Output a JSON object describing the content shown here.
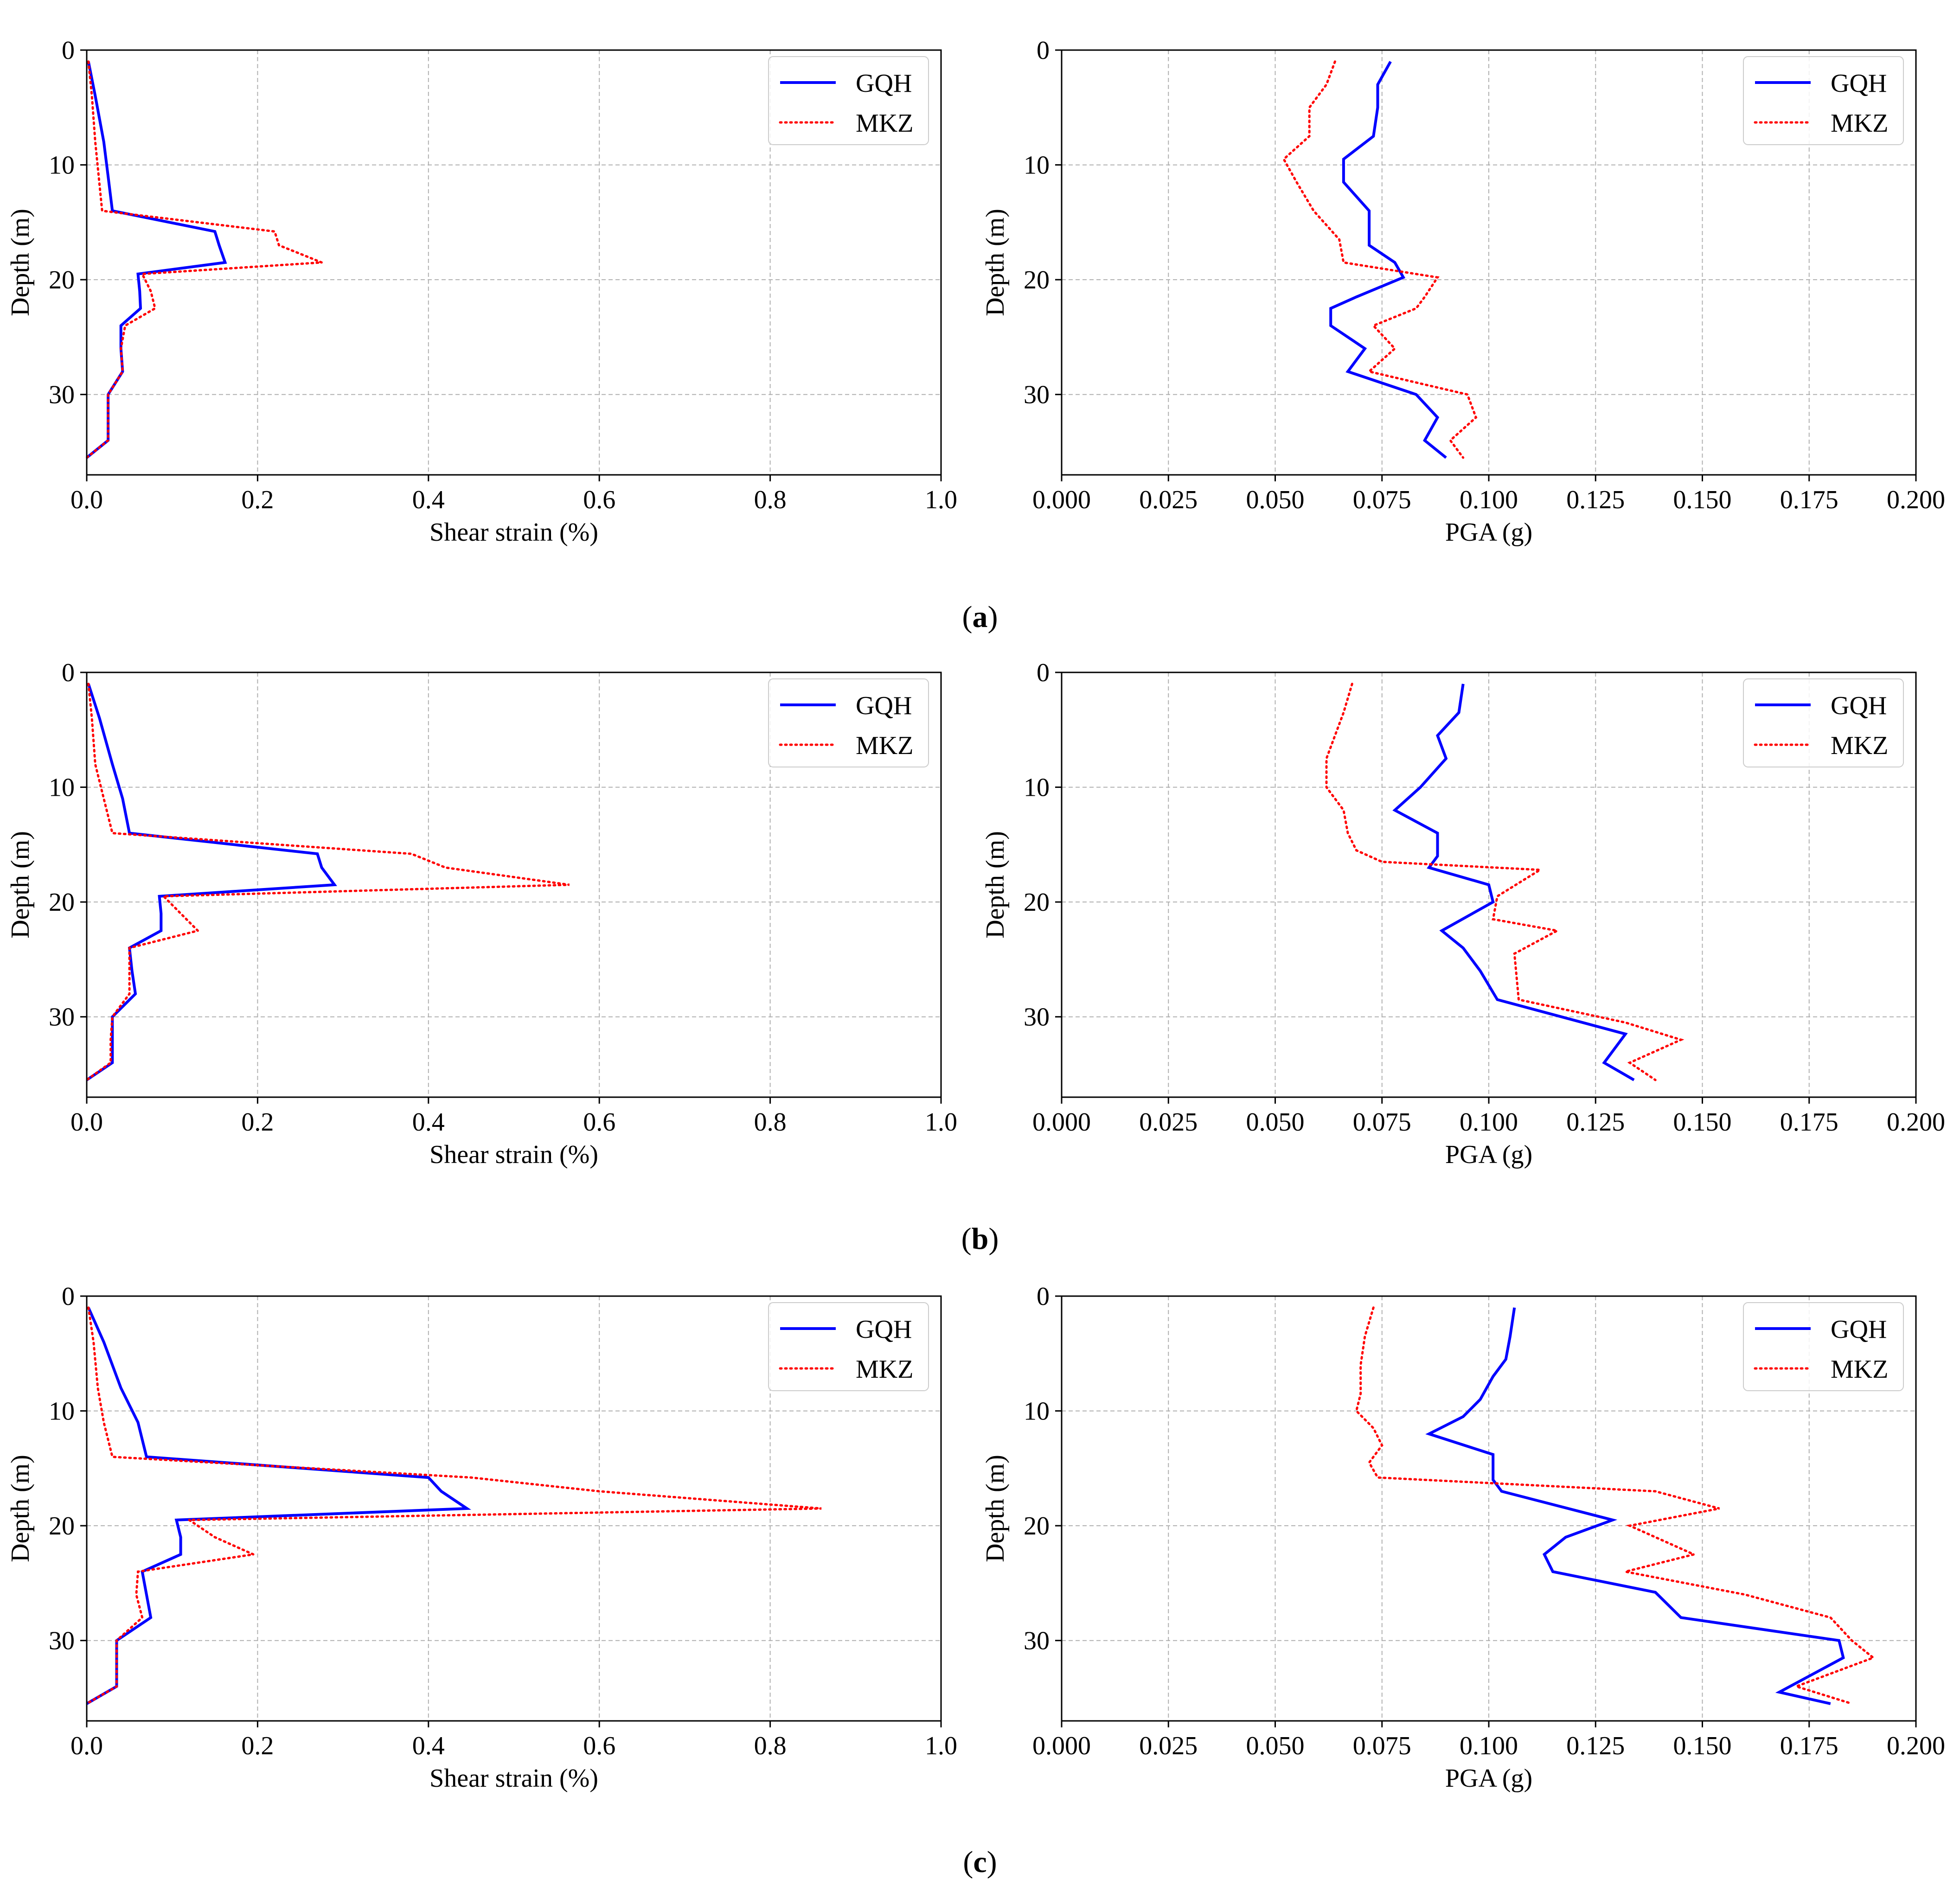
{
  "colors": {
    "gqh": "#0000ff",
    "mkz": "#ff0000",
    "axis": "#000000",
    "grid": "#b0b0b0"
  },
  "panel_labels": [
    "a",
    "b",
    "c"
  ],
  "chart_data": [
    {
      "type": "line",
      "panel": "a",
      "side": "left",
      "title": "",
      "xlabel": "Shear strain (%)",
      "ylabel": "Depth (m)",
      "xlim": [
        0,
        1.0
      ],
      "ylim": [
        37,
        0
      ],
      "grid": true,
      "legend": "top-right",
      "xticks": [
        "0.0",
        "0.2",
        "0.4",
        "0.6",
        "0.8",
        "1.0"
      ],
      "yticks": [
        "0",
        "10",
        "20",
        "30"
      ],
      "series": [
        {
          "name": "GQH",
          "style": "solid",
          "x": [
            0.002,
            0.01,
            0.02,
            0.025,
            0.03,
            0.15,
            0.155,
            0.162,
            0.06,
            0.062,
            0.063,
            0.04,
            0.04,
            0.042,
            0.025,
            0.025,
            0.025,
            0.0
          ],
          "y": [
            1,
            4,
            8,
            11,
            14,
            15.8,
            17,
            18.5,
            19.5,
            21,
            22.5,
            24,
            26,
            28,
            30,
            32,
            34,
            35.5
          ]
        },
        {
          "name": "MKZ",
          "style": "dotted",
          "x": [
            0.002,
            0.006,
            0.01,
            0.014,
            0.018,
            0.22,
            0.225,
            0.275,
            0.065,
            0.075,
            0.08,
            0.045,
            0.04,
            0.042,
            0.025,
            0.025,
            0.025,
            0.0
          ],
          "y": [
            1,
            4,
            8,
            11,
            14,
            15.8,
            17,
            18.5,
            19.5,
            21,
            22.5,
            24,
            26,
            28,
            30,
            32,
            34,
            35.5
          ]
        }
      ]
    },
    {
      "type": "line",
      "panel": "a",
      "side": "right",
      "title": "",
      "xlabel": "PGA (g)",
      "ylabel": "Depth (m)",
      "xlim": [
        0,
        0.2
      ],
      "ylim": [
        37,
        0
      ],
      "grid": true,
      "legend": "top-right",
      "xticks": [
        "0.000",
        "0.025",
        "0.050",
        "0.075",
        "0.100",
        "0.125",
        "0.150",
        "0.175",
        "0.200"
      ],
      "yticks": [
        "0",
        "10",
        "20",
        "30"
      ],
      "series": [
        {
          "name": "GQH",
          "style": "solid",
          "x": [
            0.077,
            0.074,
            0.074,
            0.073,
            0.066,
            0.066,
            0.072,
            0.072,
            0.078,
            0.08,
            0.069,
            0.063,
            0.063,
            0.071,
            0.067,
            0.083,
            0.088,
            0.085,
            0.09
          ],
          "y": [
            1,
            3,
            5,
            7.5,
            9.5,
            11.5,
            14,
            17,
            18.5,
            19.8,
            21.5,
            22.5,
            24,
            26,
            28,
            30,
            32,
            34,
            35.5
          ]
        },
        {
          "name": "MKZ",
          "style": "dotted",
          "x": [
            0.064,
            0.062,
            0.058,
            0.058,
            0.052,
            0.055,
            0.059,
            0.065,
            0.066,
            0.088,
            0.085,
            0.083,
            0.073,
            0.078,
            0.072,
            0.095,
            0.097,
            0.091,
            0.094
          ],
          "y": [
            1,
            3,
            5,
            7.5,
            9.5,
            11.5,
            14,
            16.5,
            18.5,
            19.8,
            21.5,
            22.5,
            24,
            26,
            28,
            30,
            32,
            34,
            35.5
          ]
        }
      ]
    },
    {
      "type": "line",
      "panel": "b",
      "side": "left",
      "title": "",
      "xlabel": "Shear strain (%)",
      "ylabel": "Depth (m)",
      "xlim": [
        0,
        1.0
      ],
      "ylim": [
        37,
        0
      ],
      "grid": true,
      "legend": "top-right",
      "xticks": [
        "0.0",
        "0.2",
        "0.4",
        "0.6",
        "0.8",
        "1.0"
      ],
      "yticks": [
        "0",
        "10",
        "20",
        "30"
      ],
      "series": [
        {
          "name": "GQH",
          "style": "solid",
          "x": [
            0.002,
            0.015,
            0.03,
            0.042,
            0.05,
            0.27,
            0.275,
            0.29,
            0.085,
            0.087,
            0.087,
            0.05,
            0.053,
            0.057,
            0.03,
            0.03,
            0.03,
            0.0
          ],
          "y": [
            1,
            4,
            8,
            11,
            14,
            15.8,
            17,
            18.5,
            19.5,
            21,
            22.5,
            24,
            26,
            28,
            30,
            32,
            34,
            35.5
          ]
        },
        {
          "name": "MKZ",
          "style": "dotted",
          "x": [
            0.002,
            0.006,
            0.01,
            0.02,
            0.03,
            0.38,
            0.42,
            0.565,
            0.09,
            0.11,
            0.13,
            0.05,
            0.05,
            0.05,
            0.03,
            0.028,
            0.028,
            0.0
          ],
          "y": [
            1,
            4,
            8,
            11,
            14,
            15.8,
            17,
            18.5,
            19.5,
            21,
            22.5,
            24,
            26,
            28,
            30,
            32,
            34,
            35.5
          ]
        }
      ]
    },
    {
      "type": "line",
      "panel": "b",
      "side": "right",
      "title": "",
      "xlabel": "PGA (g)",
      "ylabel": "Depth (m)",
      "xlim": [
        0,
        0.2
      ],
      "ylim": [
        37,
        0
      ],
      "grid": true,
      "legend": "top-right",
      "xticks": [
        "0.000",
        "0.025",
        "0.050",
        "0.075",
        "0.100",
        "0.125",
        "0.150",
        "0.175",
        "0.200"
      ],
      "yticks": [
        "0",
        "10",
        "20",
        "30"
      ],
      "series": [
        {
          "name": "GQH",
          "style": "solid",
          "x": [
            0.094,
            0.093,
            0.088,
            0.09,
            0.084,
            0.078,
            0.088,
            0.088,
            0.086,
            0.1,
            0.101,
            0.089,
            0.094,
            0.098,
            0.102,
            0.132,
            0.127,
            0.134
          ],
          "y": [
            1,
            3.5,
            5.5,
            7.5,
            10,
            12,
            14,
            16,
            17,
            18.5,
            20,
            22.5,
            24,
            26,
            28.5,
            31.5,
            34,
            35.5
          ]
        },
        {
          "name": "MKZ",
          "style": "dotted",
          "x": [
            0.068,
            0.066,
            0.064,
            0.062,
            0.062,
            0.066,
            0.067,
            0.069,
            0.075,
            0.112,
            0.102,
            0.101,
            0.116,
            0.106,
            0.107,
            0.132,
            0.145,
            0.133,
            0.139
          ],
          "y": [
            1,
            3.5,
            5.5,
            7.5,
            10,
            12,
            14,
            15.5,
            16.5,
            17.2,
            19.5,
            21.5,
            22.5,
            24.5,
            28.5,
            30.5,
            32,
            34,
            35.5
          ]
        }
      ]
    },
    {
      "type": "line",
      "panel": "c",
      "side": "left",
      "title": "",
      "xlabel": "Shear strain (%)",
      "ylabel": "Depth (m)",
      "xlim": [
        0,
        1.0
      ],
      "ylim": [
        37,
        0
      ],
      "grid": true,
      "legend": "top-right",
      "xticks": [
        "0.0",
        "0.2",
        "0.4",
        "0.6",
        "0.8",
        "1.0"
      ],
      "yticks": [
        "0",
        "10",
        "20",
        "30"
      ],
      "series": [
        {
          "name": "GQH",
          "style": "solid",
          "x": [
            0.002,
            0.02,
            0.04,
            0.06,
            0.07,
            0.4,
            0.415,
            0.445,
            0.105,
            0.11,
            0.11,
            0.065,
            0.07,
            0.075,
            0.035,
            0.035,
            0.035,
            0.0
          ],
          "y": [
            1,
            4,
            8,
            11,
            14,
            15.8,
            17,
            18.5,
            19.5,
            21,
            22.5,
            24,
            26,
            28,
            30,
            32,
            34,
            35.5
          ]
        },
        {
          "name": "MKZ",
          "style": "dotted",
          "x": [
            0.002,
            0.008,
            0.013,
            0.02,
            0.03,
            0.45,
            0.6,
            0.86,
            0.12,
            0.15,
            0.195,
            0.06,
            0.058,
            0.065,
            0.035,
            0.035,
            0.035,
            0.0
          ],
          "y": [
            1,
            4,
            8,
            11,
            14,
            15.8,
            17,
            18.5,
            19.5,
            21,
            22.5,
            24,
            26,
            28,
            30,
            32,
            34,
            35.5
          ]
        }
      ]
    },
    {
      "type": "line",
      "panel": "c",
      "side": "right",
      "title": "",
      "xlabel": "PGA (g)",
      "ylabel": "Depth (m)",
      "xlim": [
        0,
        0.2
      ],
      "ylim": [
        37,
        0
      ],
      "grid": true,
      "legend": "top-right",
      "xticks": [
        "0.000",
        "0.025",
        "0.050",
        "0.075",
        "0.100",
        "0.125",
        "0.150",
        "0.175",
        "0.200"
      ],
      "yticks": [
        "0",
        "10",
        "20",
        "30"
      ],
      "series": [
        {
          "name": "GQH",
          "style": "solid",
          "x": [
            0.106,
            0.105,
            0.104,
            0.101,
            0.098,
            0.094,
            0.086,
            0.101,
            0.101,
            0.103,
            0.129,
            0.118,
            0.113,
            0.115,
            0.139,
            0.145,
            0.182,
            0.183,
            0.168,
            0.18
          ],
          "y": [
            1,
            3.5,
            5.5,
            7,
            9,
            10.5,
            12,
            13.8,
            16,
            17,
            19.5,
            21,
            22.5,
            24,
            25.8,
            28,
            30,
            31.5,
            34.5,
            35.5
          ]
        },
        {
          "name": "MKZ",
          "style": "dotted",
          "x": [
            0.073,
            0.071,
            0.07,
            0.07,
            0.069,
            0.073,
            0.075,
            0.072,
            0.074,
            0.139,
            0.154,
            0.133,
            0.148,
            0.132,
            0.16,
            0.18,
            0.185,
            0.19,
            0.172,
            0.185
          ],
          "y": [
            1,
            3.5,
            6,
            8.5,
            10,
            11.5,
            13,
            14.5,
            15.8,
            17,
            18.5,
            20,
            22.5,
            24,
            26,
            28,
            30,
            31.5,
            34,
            35.5
          ]
        }
      ]
    }
  ]
}
